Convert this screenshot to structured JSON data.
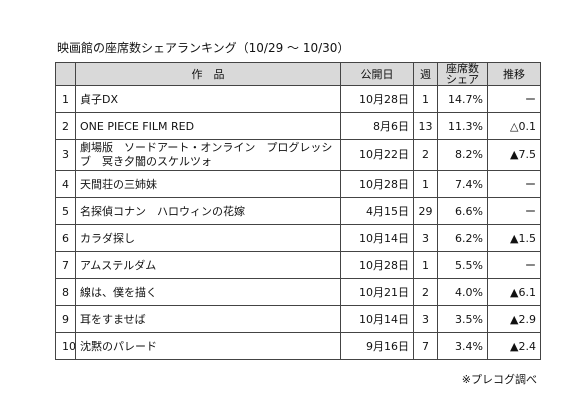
{
  "title": "映画館の座席数シェアランキング（10/29 ～ 10/30）",
  "table": {
    "header": [
      "作　品",
      "公開日",
      "週",
      "座席数シェア",
      "推移"
    ],
    "rows": [
      [
        "1",
        "貞子DX",
        "10月28日",
        "1",
        "14.7%",
        "ー"
      ],
      [
        "2",
        "ONE PIECE FILM RED",
        "8月6日",
        "13",
        "11.3%",
        "△0.1"
      ],
      [
        "3",
        "劇場版　ソードアート・オンライン　プログレッシブ　冥き夕闇のスケルツォ",
        "10月22日",
        "2",
        "8.2%",
        "▲7.5"
      ],
      [
        "4",
        "天間荘の三姉妹",
        "10月28日",
        "1",
        "7.4%",
        "ー"
      ],
      [
        "5",
        "名探偵コナン　ハロウィンの花嫁",
        "4月15日",
        "29",
        "6.6%",
        "ー"
      ],
      [
        "6",
        "カラダ探し",
        "10月14日",
        "3",
        "6.2%",
        "▲1.5"
      ],
      [
        "7",
        "アムステルダム",
        "10月28日",
        "1",
        "5.5%",
        "ー"
      ],
      [
        "8",
        "線は、僕を描く",
        "10月21日",
        "2",
        "4.0%",
        "▲6.1"
      ],
      [
        "9",
        "耳をすませば",
        "10月14日",
        "3",
        "3.5%",
        "▲2.9"
      ],
      [
        "10",
        "沈黙のパレード",
        "9月16日",
        "7",
        "3.4%",
        "▲2.4"
      ]
    ]
  },
  "footnote": "※プレコグ調べ"
}
